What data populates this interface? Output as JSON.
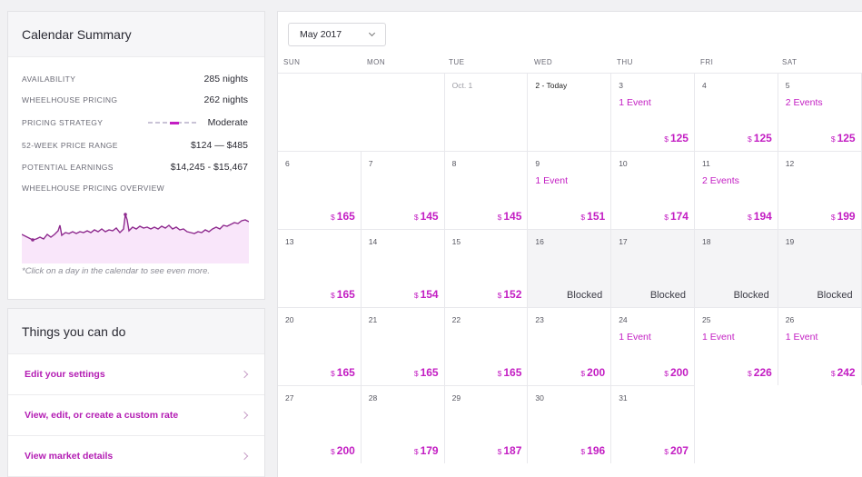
{
  "summary": {
    "title": "Calendar Summary",
    "stats": [
      {
        "label": "AVAILABILITY",
        "value": "285 nights"
      },
      {
        "label": "WHEELHOUSE PRICING",
        "value": "262 nights"
      },
      {
        "label": "PRICING STRATEGY",
        "value": "Moderate"
      },
      {
        "label": "52-WEEK PRICE RANGE",
        "value": "$124 — $485"
      },
      {
        "label": "POTENTIAL EARNINGS",
        "value": "$14,245 - $15,467"
      }
    ],
    "overview_label": "WHEELHOUSE PRICING OVERVIEW",
    "hint": "*Click on a day in the calendar to see even more.",
    "accent": "#c31ec3"
  },
  "todo": {
    "title": "Things you can do",
    "items": [
      {
        "label": "Edit your settings"
      },
      {
        "label": "View, edit, or create a custom rate"
      },
      {
        "label": "View market details"
      }
    ]
  },
  "calendar": {
    "month": "May 2017",
    "dow": [
      "SUN",
      "MON",
      "TUE",
      "WED",
      "THU",
      "FRI",
      "SAT"
    ],
    "currency": "$",
    "blocked_label": "Blocked",
    "days": [
      {
        "label": "Oct. 1"
      },
      {
        "label": "2 - Today"
      },
      {
        "label": "3",
        "event": "1 Event",
        "price": "125"
      },
      {
        "label": "4",
        "price": "125"
      },
      {
        "label": "5",
        "event": "2 Events",
        "price": "125"
      },
      {
        "label": "6",
        "price": "165"
      },
      {
        "label": "7",
        "price": "145"
      },
      {
        "label": "8",
        "price": "145"
      },
      {
        "label": "9",
        "event": "1 Event",
        "price": "151"
      },
      {
        "label": "10",
        "price": "174"
      },
      {
        "label": "11",
        "event": "2 Events",
        "price": "194"
      },
      {
        "label": "12",
        "price": "199"
      },
      {
        "label": "13",
        "price": "165"
      },
      {
        "label": "14",
        "price": "154"
      },
      {
        "label": "15",
        "price": "152"
      },
      {
        "label": "16",
        "blocked": true
      },
      {
        "label": "17",
        "blocked": true
      },
      {
        "label": "18",
        "blocked": true
      },
      {
        "label": "19",
        "blocked": true
      },
      {
        "label": "20",
        "price": "165"
      },
      {
        "label": "21",
        "price": "165"
      },
      {
        "label": "22",
        "price": "165"
      },
      {
        "label": "23",
        "price": "200"
      },
      {
        "label": "24",
        "event": "1 Event",
        "price": "200"
      },
      {
        "label": "25",
        "event": "1 Event",
        "price": "226"
      },
      {
        "label": "26",
        "event": "1 Event",
        "price": "242"
      },
      {
        "label": "27",
        "price": "200"
      },
      {
        "label": "28",
        "price": "179"
      },
      {
        "label": "29",
        "price": "187"
      },
      {
        "label": "30",
        "price": "196"
      },
      {
        "label": "31",
        "price": "207"
      }
    ]
  }
}
